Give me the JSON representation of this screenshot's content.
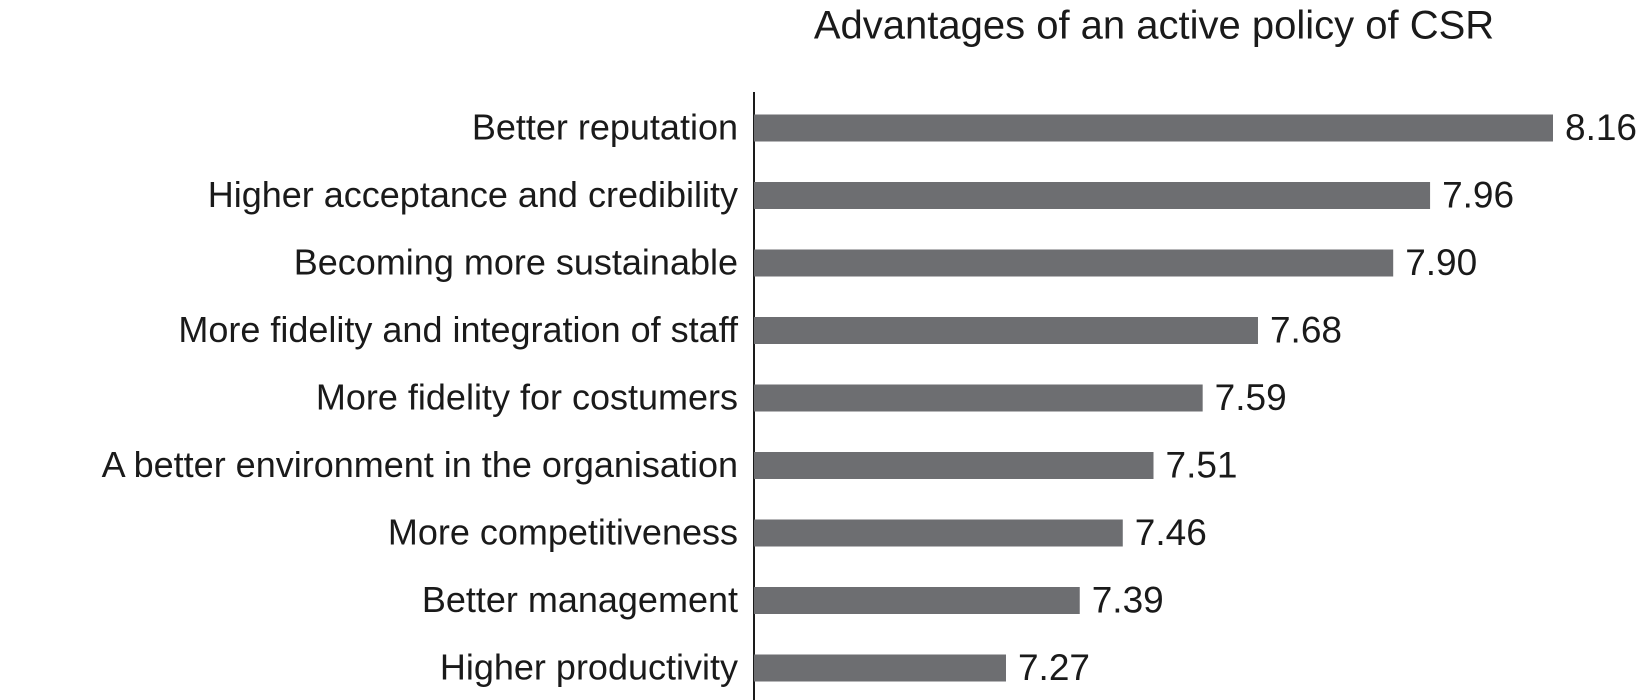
{
  "chart_data": {
    "type": "barh",
    "title": "Advantages of an active policy of CSR",
    "categories": [
      "Better reputation",
      "Higher acceptance and credibility",
      "Becoming more sustainable",
      "More fidelity and integration of staff",
      "More fidelity for costumers",
      "A better environment in the organisation",
      "More competitiveness",
      "Better management",
      "Higher productivity"
    ],
    "values": [
      8.16,
      7.96,
      7.9,
      7.68,
      7.59,
      7.51,
      7.46,
      7.39,
      7.27
    ],
    "value_labels": [
      "8.16",
      "7.96",
      "7.90",
      "7.68",
      "7.59",
      "7.51",
      "7.46",
      "7.39",
      "7.27"
    ],
    "color": "#6d6e71",
    "xlim": [
      6.86,
      8.16
    ]
  }
}
